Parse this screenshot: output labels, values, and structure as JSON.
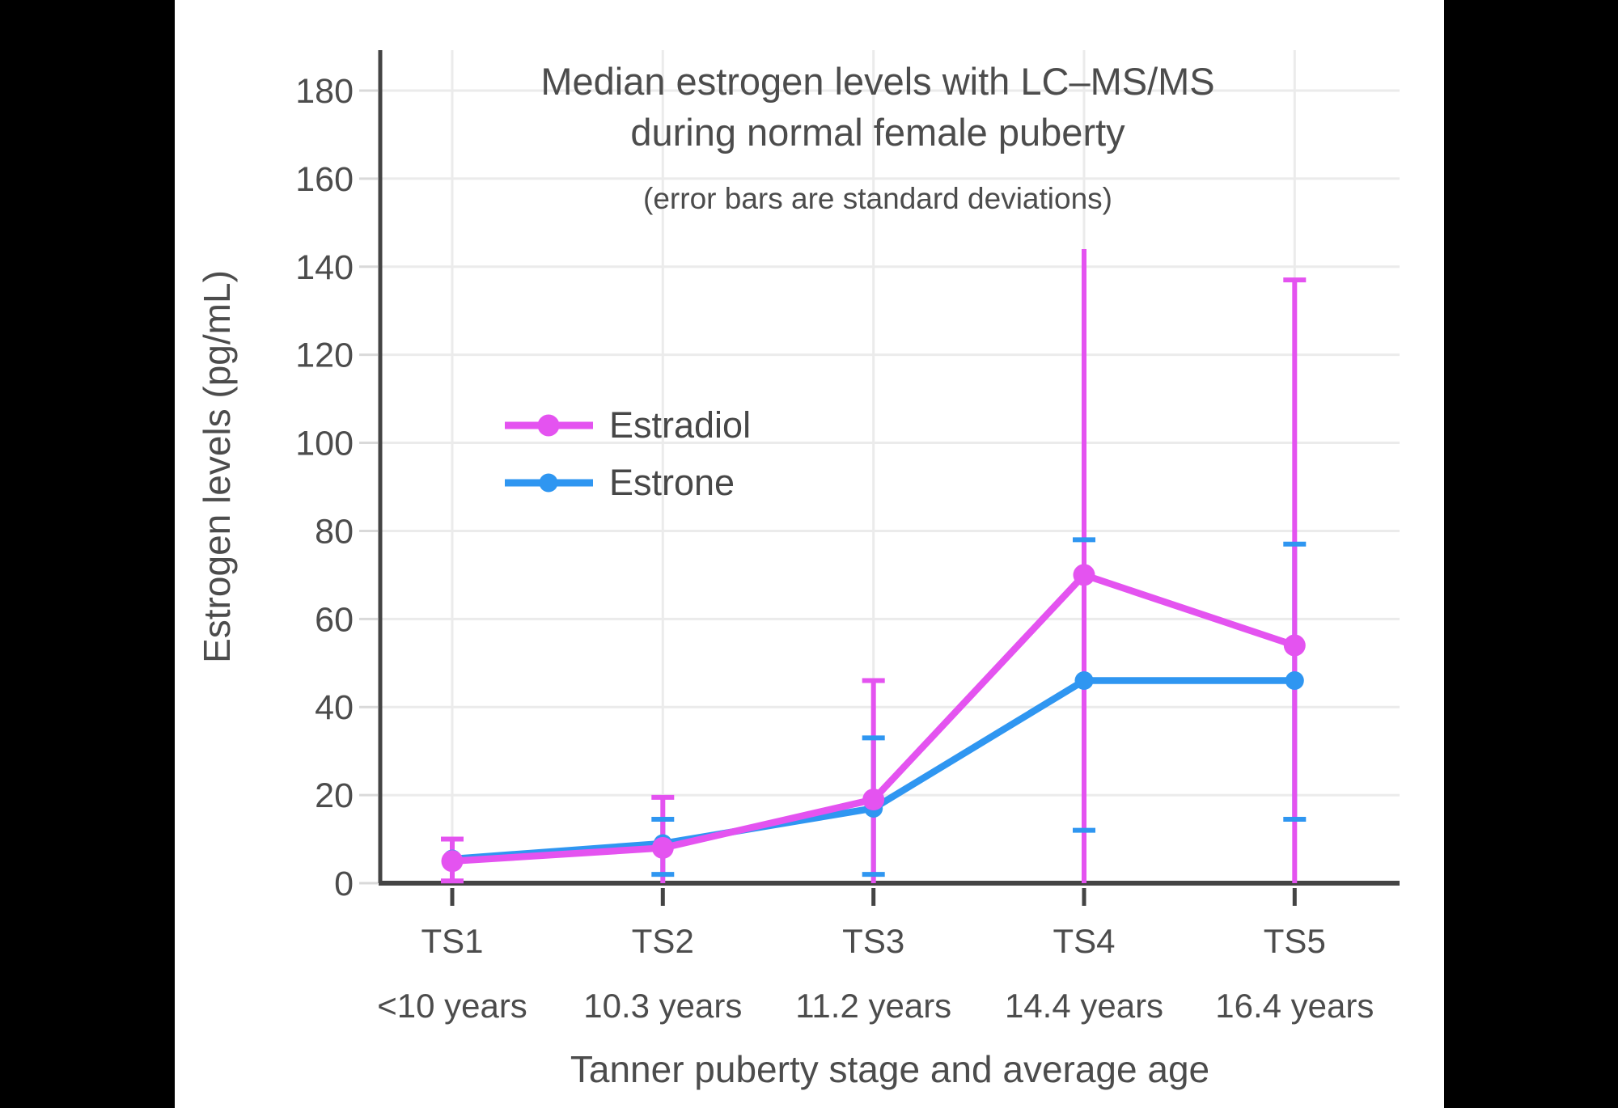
{
  "chart_data": {
    "type": "line",
    "title": "Median estrogen levels with LC–MS/MS during normal female puberty",
    "title_line1": "Median estrogen levels with LC–MS/MS",
    "title_line2": "during normal female puberty",
    "subtitle": "(error bars are standard deviations)",
    "xlabel": "Tanner puberty stage and average age",
    "ylabel": "Estrogen levels (pg/mL)",
    "categories": [
      "TS1",
      "TS2",
      "TS3",
      "TS4",
      "TS5"
    ],
    "category_ages": [
      "<10 years",
      "10.3 years",
      "11.2 years",
      "14.4 years",
      "16.4 years"
    ],
    "y_ticks": [
      0,
      20,
      40,
      60,
      80,
      100,
      120,
      140,
      160,
      180
    ],
    "ylim": [
      0,
      189
    ],
    "grid": true,
    "legend_position": "inside-upper-left",
    "units": "pg/mL",
    "series": [
      {
        "name": "Estradiol",
        "color": "#e453f0",
        "values": [
          5,
          8,
          19,
          70,
          54
        ],
        "error_upper": [
          10,
          19.5,
          46,
          144,
          137
        ],
        "error_lower": [
          0.5,
          0,
          0,
          0,
          0
        ],
        "upper_caps": [
          true,
          true,
          true,
          false,
          true
        ],
        "lower_caps": [
          true,
          false,
          false,
          false,
          false
        ]
      },
      {
        "name": "Estrone",
        "color": "#2f96f1",
        "values": [
          5.5,
          9,
          17,
          46,
          46
        ],
        "error_upper": [
          null,
          14.5,
          33,
          78,
          77
        ],
        "error_lower": [
          null,
          2,
          2,
          12,
          14.5
        ],
        "upper_caps": [
          false,
          true,
          true,
          true,
          true
        ],
        "lower_caps": [
          false,
          true,
          true,
          true,
          true
        ]
      }
    ],
    "colors": {
      "background": "#ffffff",
      "letterbox": "#000000",
      "gridline": "#ebebeb",
      "axis": "#444444",
      "text": "#4c4c4c"
    }
  }
}
